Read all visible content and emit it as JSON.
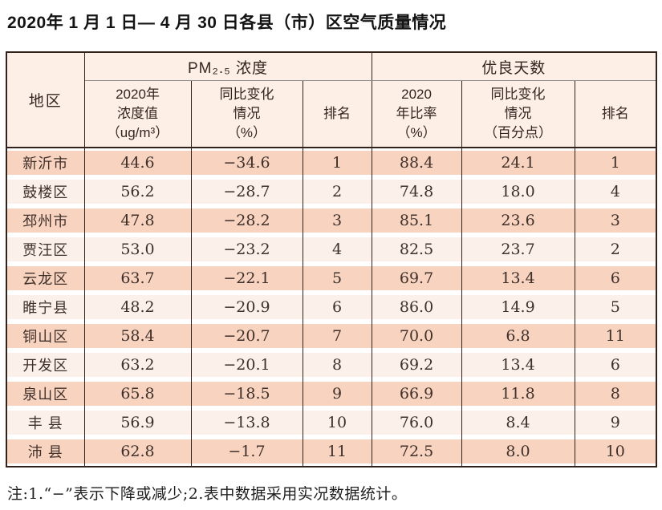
{
  "title": "2020年 1 月 1 日— 4 月 30 日各县（市）区空气质量情况",
  "table": {
    "headers": {
      "region": "地区",
      "pm_group": "PM₂.₅ 浓度",
      "good_days_group": "优良天数",
      "pm_value": "2020年\n浓度值\n（ug/m³）",
      "pm_change": "同比变化\n情况\n（%）",
      "pm_rank": "排名",
      "ratio": "2020\n年比率\n（%）",
      "ratio_change": "同比变化\n情况\n（百分点）",
      "ratio_rank": "排名"
    },
    "columns": [
      "region",
      "pm_value",
      "pm_change",
      "pm_rank",
      "ratio",
      "ratio_change",
      "ratio_rank"
    ],
    "rows": [
      {
        "region": "新沂市",
        "pm_value": "44.6",
        "pm_change": "−34.6",
        "pm_rank": "1",
        "ratio": "88.4",
        "ratio_change": "24.1",
        "ratio_rank": "1"
      },
      {
        "region": "鼓楼区",
        "pm_value": "56.2",
        "pm_change": "−28.7",
        "pm_rank": "2",
        "ratio": "74.8",
        "ratio_change": "18.0",
        "ratio_rank": "4"
      },
      {
        "region": "邳州市",
        "pm_value": "47.8",
        "pm_change": "−28.2",
        "pm_rank": "3",
        "ratio": "85.1",
        "ratio_change": "23.6",
        "ratio_rank": "3"
      },
      {
        "region": "贾汪区",
        "pm_value": "53.0",
        "pm_change": "−23.2",
        "pm_rank": "4",
        "ratio": "82.5",
        "ratio_change": "23.7",
        "ratio_rank": "2"
      },
      {
        "region": "云龙区",
        "pm_value": "63.7",
        "pm_change": "−22.1",
        "pm_rank": "5",
        "ratio": "69.7",
        "ratio_change": "13.4",
        "ratio_rank": "6"
      },
      {
        "region": "睢宁县",
        "pm_value": "48.2",
        "pm_change": "−20.9",
        "pm_rank": "6",
        "ratio": "86.0",
        "ratio_change": "14.9",
        "ratio_rank": "5"
      },
      {
        "region": "铜山区",
        "pm_value": "58.4",
        "pm_change": "−20.7",
        "pm_rank": "7",
        "ratio": "70.0",
        "ratio_change": "6.8",
        "ratio_rank": "11"
      },
      {
        "region": "开发区",
        "pm_value": "63.2",
        "pm_change": "−20.1",
        "pm_rank": "8",
        "ratio": "69.2",
        "ratio_change": "13.4",
        "ratio_rank": "6"
      },
      {
        "region": "泉山区",
        "pm_value": "65.8",
        "pm_change": "−18.5",
        "pm_rank": "9",
        "ratio": "66.9",
        "ratio_change": "11.8",
        "ratio_rank": "8"
      },
      {
        "region": "丰 县",
        "pm_value": "56.9",
        "pm_change": "−13.8",
        "pm_rank": "10",
        "ratio": "76.0",
        "ratio_change": "8.4",
        "ratio_rank": "9"
      },
      {
        "region": "沛 县",
        "pm_value": "62.8",
        "pm_change": "−1.7",
        "pm_rank": "11",
        "ratio": "72.5",
        "ratio_change": "8.0",
        "ratio_rank": "10"
      }
    ]
  },
  "note": "注:1.“−”表示下降或减少;2.表中数据采用实况数据统计。",
  "colors": {
    "row_odd": "#f8d3c0",
    "row_even": "#fbf1ea",
    "header_bg": "#fdeee6",
    "border_dark": "#33211b",
    "border_gray": "#8a8a8a"
  }
}
